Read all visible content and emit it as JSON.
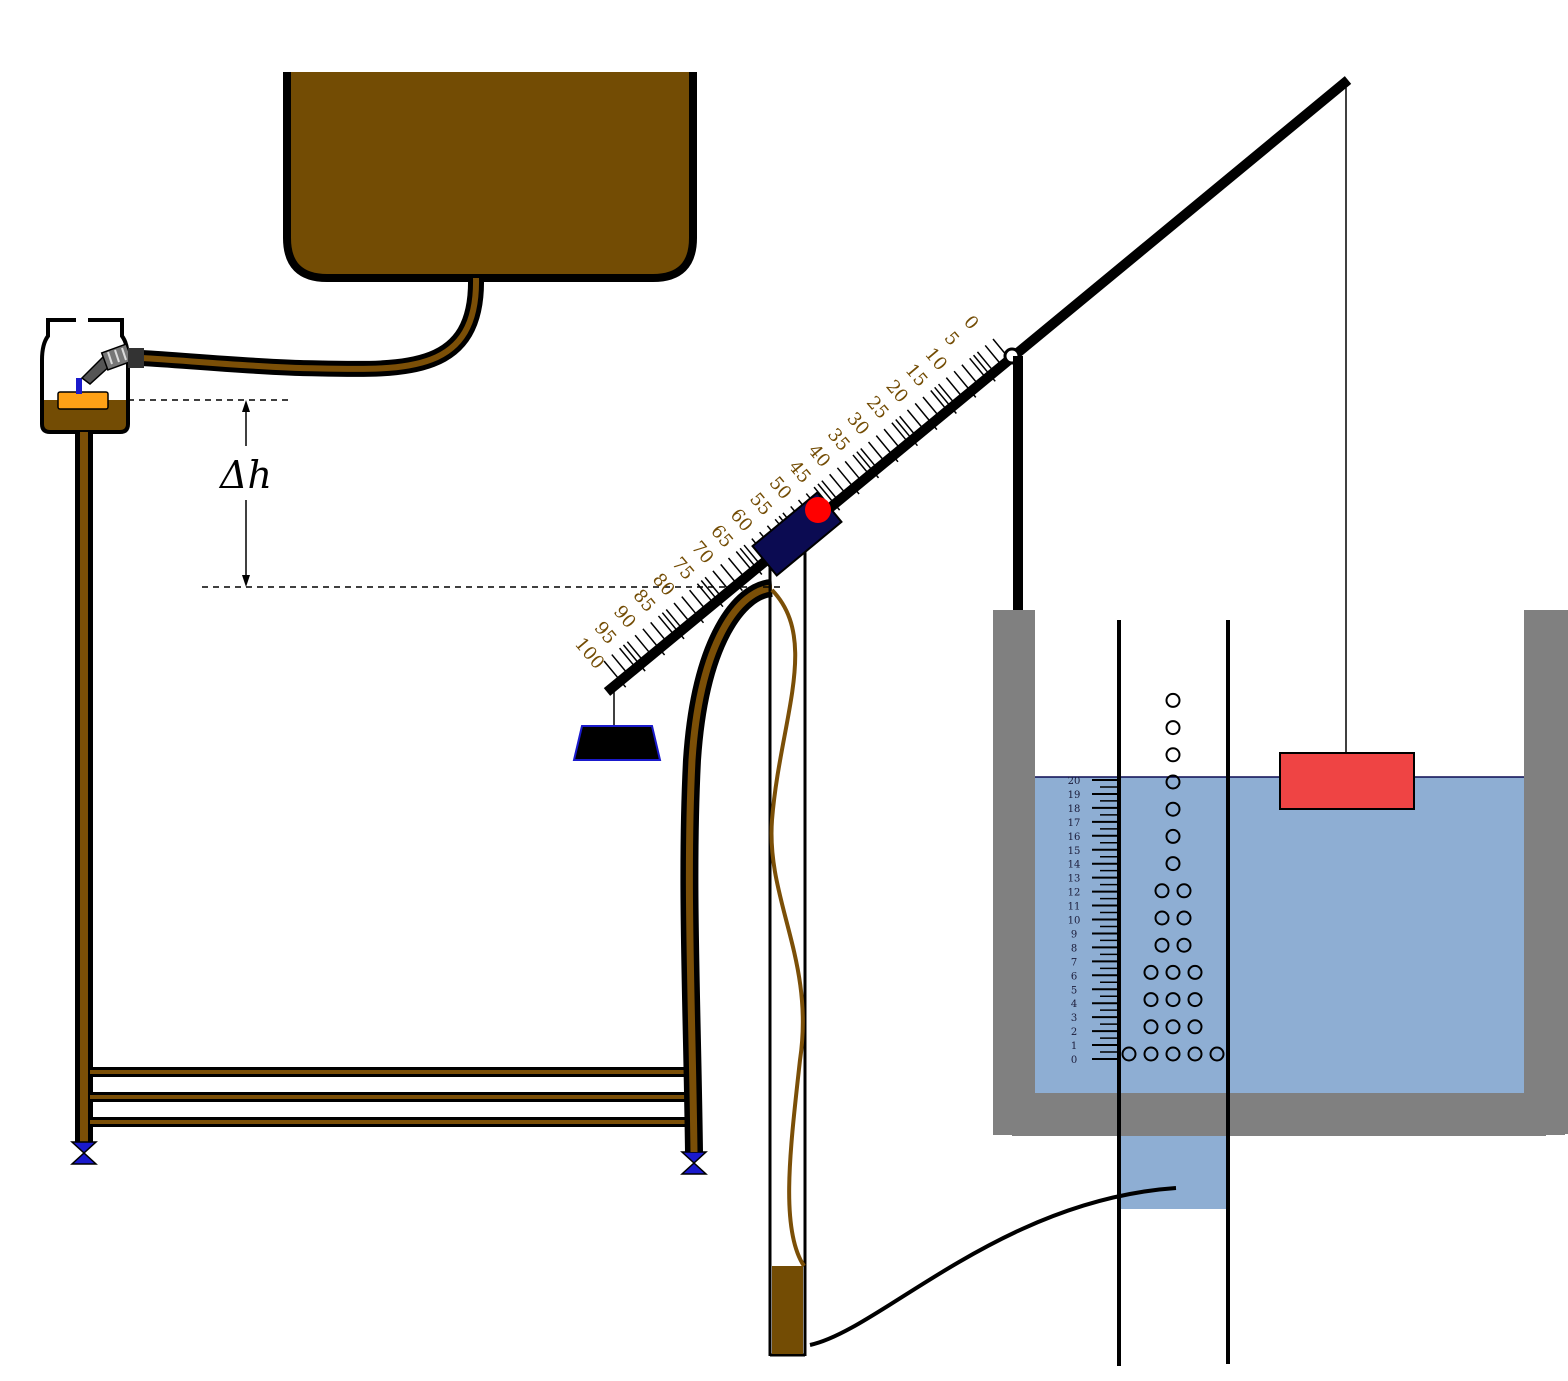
{
  "diagram": {
    "delta_h_label": "Δh",
    "colors": {
      "brown": "#734c04",
      "dark_brown": "#7b4f07",
      "water": "#8eaed3",
      "tank_gray": "#808080",
      "slider_navy": "#0b0b52",
      "pivot_red": "#ff0000",
      "float_red": "#ef4444",
      "orange_float": "#ffa116",
      "valve_blue": "#1a1acc"
    },
    "icons": [
      "reservoir-tank",
      "float-chamber",
      "needle-valve",
      "balance-beam",
      "counterweight-pan",
      "float-block",
      "bubble-column",
      "foot-valve"
    ],
    "beam_scale": {
      "labels": [
        "0",
        "5",
        "10",
        "15",
        "20",
        "25",
        "30",
        "35",
        "40",
        "45",
        "50",
        "55",
        "60",
        "65",
        "70",
        "75",
        "80",
        "85",
        "90",
        "95",
        "100"
      ]
    },
    "tank_scale": {
      "labels": [
        "0",
        "1",
        "2",
        "3",
        "4",
        "5",
        "6",
        "7",
        "8",
        "9",
        "10",
        "11",
        "12",
        "13",
        "14",
        "15",
        "16",
        "17",
        "18",
        "19",
        "20"
      ]
    },
    "bubble_counts": [
      5,
      3,
      3,
      3,
      2,
      2,
      2,
      1,
      1,
      1,
      1,
      1,
      1,
      1
    ]
  }
}
